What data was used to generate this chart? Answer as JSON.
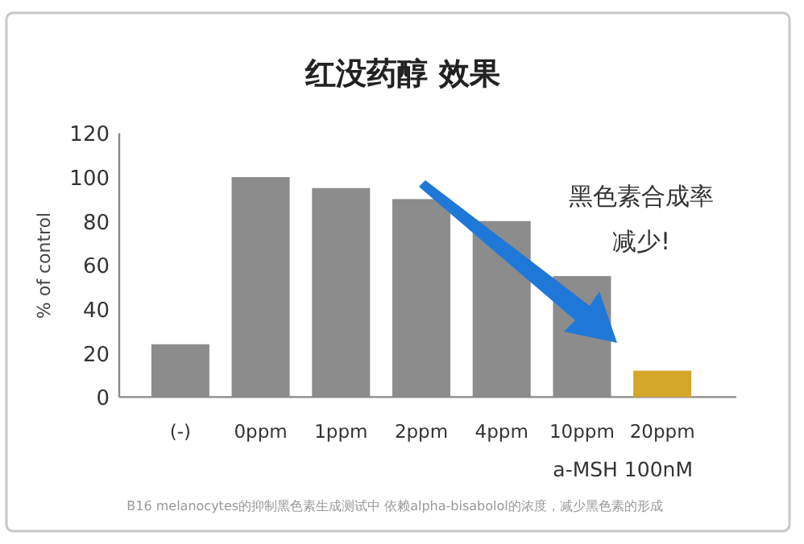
{
  "chart_data": {
    "type": "bar",
    "title": "红没药醇 效果",
    "ylabel": "% of control",
    "xlabel": "a-MSH 100nM",
    "categories": [
      "(-)",
      "0ppm",
      "1ppm",
      "2ppm",
      "4ppm",
      "10ppm",
      "20ppm"
    ],
    "values": [
      24,
      100,
      95,
      90,
      80,
      55,
      12
    ],
    "colors": [
      "#8c8c8c",
      "#8c8c8c",
      "#8c8c8c",
      "#8c8c8c",
      "#8c8c8c",
      "#8c8c8c",
      "#d4a62a"
    ],
    "ylim": [
      0,
      120
    ],
    "yticks": [
      0,
      20,
      40,
      60,
      80,
      100,
      120
    ],
    "annotations": [
      "黑色素合成率",
      "减少!",
      "B16 melanocytes的抑制黑色素生成测试中 依赖alpha-bisabolol的浓度，减少黑色素的形成"
    ]
  }
}
